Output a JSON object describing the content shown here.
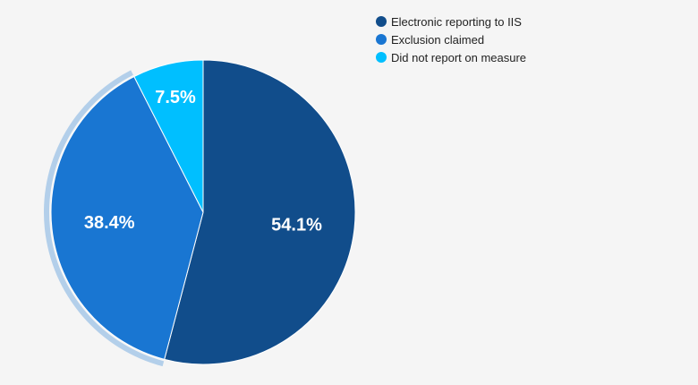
{
  "chart_data": {
    "type": "pie",
    "slices": [
      {
        "label": "Electronic reporting to IIS",
        "value": 54.1,
        "display": "54.1%",
        "color": "#114d8b"
      },
      {
        "label": "Exclusion claimed",
        "value": 38.4,
        "display": "38.4%",
        "color": "#1976d2"
      },
      {
        "label": "Did not report on measure",
        "value": 7.5,
        "display": "7.5%",
        "color": "#00bfff"
      }
    ],
    "highlighted_slice": "Exclusion claimed",
    "legend_placement": "top-right",
    "start_angle": "top, clockwise"
  }
}
